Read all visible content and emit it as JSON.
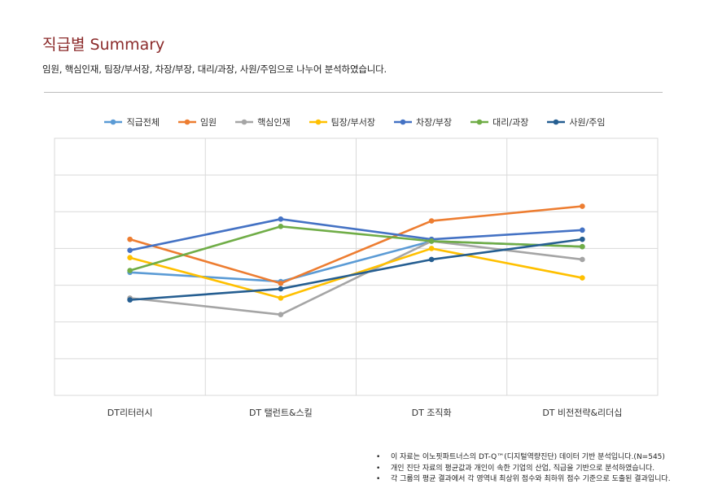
{
  "header": {
    "title": "직급별 Summary",
    "subtitle": "임원, 핵심인재, 팀장/부서장, 차장/부장, 대리/과장, 사원/주임으로 나누어 분석하였습니다."
  },
  "chart_data": {
    "type": "line",
    "categories": [
      "DT리터러시",
      "DT 탤런트&스킬",
      "DT 조직화",
      "DT 비전전략&리더십"
    ],
    "ylim": [
      0,
      7
    ],
    "grid": true,
    "legend_position": "top",
    "series": [
      {
        "name": "직급전체",
        "color": "#5b9bd5",
        "values": [
          3.35,
          3.1,
          4.2,
          4.05
        ]
      },
      {
        "name": "임원",
        "color": "#ed7d31",
        "values": [
          4.25,
          3.05,
          4.75,
          5.15
        ]
      },
      {
        "name": "핵심인재",
        "color": "#a5a5a5",
        "values": [
          2.65,
          2.2,
          4.2,
          3.7
        ]
      },
      {
        "name": "팀장/부서장",
        "color": "#ffc000",
        "values": [
          3.75,
          2.65,
          4.0,
          3.2
        ]
      },
      {
        "name": "차장/부장",
        "color": "#4472c4",
        "values": [
          3.95,
          4.8,
          4.25,
          4.5
        ]
      },
      {
        "name": "대리/과장",
        "color": "#70ad47",
        "values": [
          3.4,
          4.6,
          4.2,
          4.05
        ]
      },
      {
        "name": "사원/주임",
        "color": "#255e91",
        "values": [
          2.6,
          2.9,
          3.7,
          4.25
        ]
      }
    ]
  },
  "notes": [
    "이 자료는 이노핏파트너스의 DT-Q™(디지털역량진단) 데이터 기반 분석입니다.(N=545)",
    "개인 진단 자료의 평균값과 개인이 속한 기업의 산업, 직급을 기반으로 분석하였습니다.",
    "각 그룹의 평균 결과에서 각 영역내 최상위 점수와 최하위 점수 기준으로 도출된 결과입니다."
  ]
}
